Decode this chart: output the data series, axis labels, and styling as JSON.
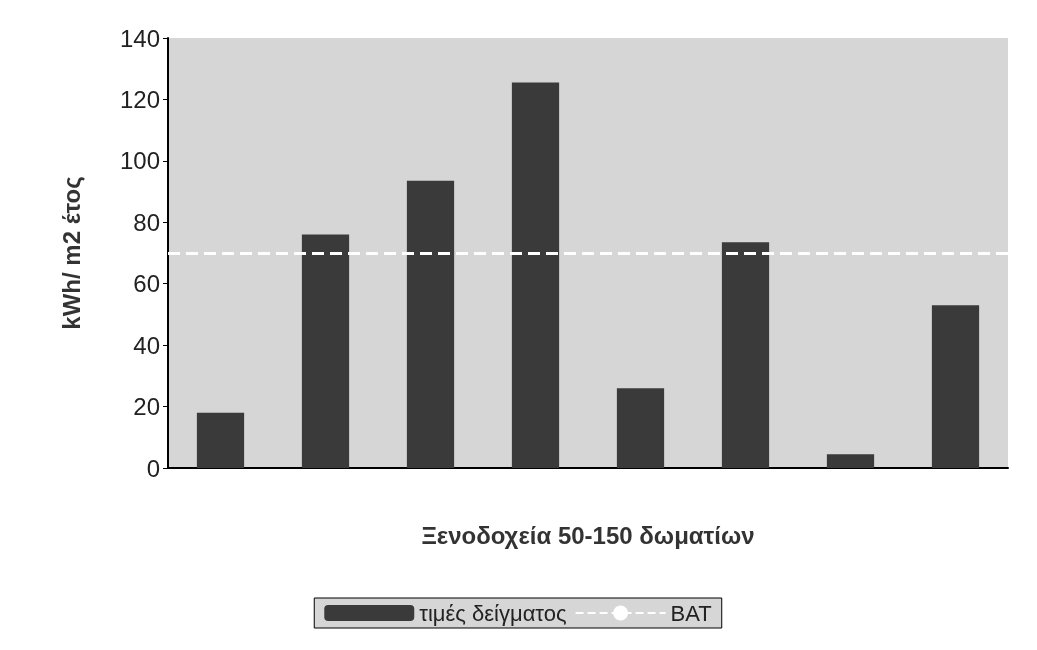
{
  "chart_data": {
    "type": "bar",
    "xlabel": "Ξενοδοχεία 50-150 δωματίων",
    "ylabel": "kWh/ m2 έτος",
    "categories": [
      null,
      null,
      null,
      null,
      null,
      null,
      null,
      null
    ],
    "series": [
      {
        "name": "τιμές δείγματος",
        "color": "#3a3a3a",
        "values": [
          18,
          76,
          93.5,
          125.5,
          26,
          73.5,
          4.5,
          53
        ]
      }
    ],
    "ylim": [
      0,
      140
    ],
    "yticks": [
      0,
      20,
      40,
      60,
      80,
      100,
      120,
      140
    ],
    "grid": false,
    "legend": "bottom",
    "ref_lines": [
      {
        "axis": "y",
        "value": 70,
        "label": "BAT",
        "color": "#ffffff",
        "line_style": "dashed"
      }
    ]
  }
}
